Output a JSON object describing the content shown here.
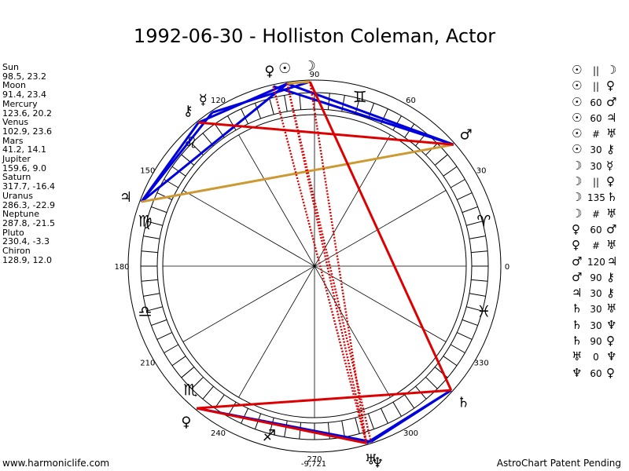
{
  "title": "1992-06-30 - Holliston Coleman, Actor",
  "planets": [
    {
      "name": "Sun",
      "coords": "98.5, 23.2",
      "lon": 98.5,
      "glyph": "☉"
    },
    {
      "name": "Moon",
      "coords": "91.4, 23.4",
      "lon": 91.4,
      "glyph": "☽"
    },
    {
      "name": "Mercury",
      "coords": "123.6, 20.2",
      "lon": 123.6,
      "glyph": "☿"
    },
    {
      "name": "Venus",
      "coords": "102.9, 23.6",
      "lon": 102.9,
      "glyph": "♀"
    },
    {
      "name": "Mars",
      "coords": "41.2, 14.1",
      "lon": 41.2,
      "glyph": "♂"
    },
    {
      "name": "Jupiter",
      "coords": "159.6, 9.0",
      "lon": 159.6,
      "glyph": "♃"
    },
    {
      "name": "Saturn",
      "coords": "317.7, -16.4",
      "lon": 317.7,
      "glyph": "♄"
    },
    {
      "name": "Uranus",
      "coords": "286.3, -22.9",
      "lon": 286.3,
      "glyph": "♅"
    },
    {
      "name": "Neptune",
      "coords": "287.8, -21.5",
      "lon": 287.8,
      "glyph": "♆"
    },
    {
      "name": "Pluto",
      "coords": "230.4, -3.3",
      "lon": 230.4,
      "glyph": "♀"
    },
    {
      "name": "Chiron",
      "coords": "128.9, 12.0",
      "lon": 128.9,
      "glyph": "⚷"
    }
  ],
  "aspects": [
    {
      "p1": "☉",
      "angle": "||",
      "p2": "☽"
    },
    {
      "p1": "☉",
      "angle": "||",
      "p2": "♀"
    },
    {
      "p1": "☉",
      "angle": "60",
      "p2": "♂"
    },
    {
      "p1": "☉",
      "angle": "60",
      "p2": "♃"
    },
    {
      "p1": "☉",
      "angle": "#",
      "p2": "♅"
    },
    {
      "p1": "☉",
      "angle": "30",
      "p2": "⚷"
    },
    {
      "p1": "☽",
      "angle": "30",
      "p2": "☿"
    },
    {
      "p1": "☽",
      "angle": "||",
      "p2": "♀"
    },
    {
      "p1": "☽",
      "angle": "135",
      "p2": "♄"
    },
    {
      "p1": "☽",
      "angle": "#",
      "p2": "♅"
    },
    {
      "p1": "♀",
      "angle": "60",
      "p2": "♂"
    },
    {
      "p1": "♀",
      "angle": "#",
      "p2": "♅"
    },
    {
      "p1": "♂",
      "angle": "120",
      "p2": "♃"
    },
    {
      "p1": "♂",
      "angle": "90",
      "p2": "⚷"
    },
    {
      "p1": "♃",
      "angle": "30",
      "p2": "⚷"
    },
    {
      "p1": "♄",
      "angle": "30",
      "p2": "♅"
    },
    {
      "p1": "♄",
      "angle": "30",
      "p2": "♆"
    },
    {
      "p1": "♄",
      "angle": "90",
      "p2": "♀"
    },
    {
      "p1": "♅",
      "angle": "0",
      "p2": "♆"
    },
    {
      "p1": "♆",
      "angle": "60",
      "p2": "♀"
    }
  ],
  "degree_labels": [
    {
      "deg": 0,
      "text": "0"
    },
    {
      "deg": 30,
      "text": "30"
    },
    {
      "deg": 60,
      "text": "60"
    },
    {
      "deg": 90,
      "text": "90"
    },
    {
      "deg": 120,
      "text": "120"
    },
    {
      "deg": 150,
      "text": "150"
    },
    {
      "deg": 180,
      "text": "180"
    },
    {
      "deg": 210,
      "text": "210"
    },
    {
      "deg": 240,
      "text": "240"
    },
    {
      "deg": 270,
      "text": "270"
    },
    {
      "deg": 300,
      "text": "300"
    },
    {
      "deg": 330,
      "text": "330"
    }
  ],
  "signs": [
    {
      "deg": 15,
      "glyph": "♈"
    },
    {
      "deg": 75,
      "glyph": "♊"
    },
    {
      "deg": 135,
      "glyph": "♌"
    },
    {
      "deg": 165,
      "glyph": "♍"
    },
    {
      "deg": 195,
      "glyph": "♎"
    },
    {
      "deg": 225,
      "glyph": "♏"
    },
    {
      "deg": 255,
      "glyph": "♐"
    },
    {
      "deg": 345,
      "glyph": "♓"
    }
  ],
  "bottom_value": "-9,721",
  "aspect_lines": [
    {
      "a": 98.5,
      "b": 41.2,
      "color": "#0000dd",
      "style": "solid"
    },
    {
      "a": 98.5,
      "b": 159.6,
      "color": "#0000dd",
      "style": "solid"
    },
    {
      "a": 102.9,
      "b": 41.2,
      "color": "#0000dd",
      "style": "solid"
    },
    {
      "a": 91.4,
      "b": 123.6,
      "color": "#0000dd",
      "style": "solid"
    },
    {
      "a": 123.6,
      "b": 159.6,
      "color": "#0000dd",
      "style": "solid"
    },
    {
      "a": 98.5,
      "b": 128.9,
      "color": "#0000dd",
      "style": "solid"
    },
    {
      "a": 159.6,
      "b": 128.9,
      "color": "#0000dd",
      "style": "solid"
    },
    {
      "a": 317.7,
      "b": 287.8,
      "color": "#0000dd",
      "style": "solid"
    },
    {
      "a": 230.4,
      "b": 287.8,
      "color": "#0000dd",
      "style": "solid"
    },
    {
      "a": 317.7,
      "b": 286.3,
      "color": "#0000dd",
      "style": "solid"
    },
    {
      "a": 91.4,
      "b": 98.5,
      "color": "#cc9933",
      "style": "solid"
    },
    {
      "a": 41.2,
      "b": 159.6,
      "color": "#cc9933",
      "style": "solid"
    },
    {
      "a": 128.9,
      "b": 41.2,
      "color": "#dd0000",
      "style": "solid"
    },
    {
      "a": 91.4,
      "b": 317.7,
      "color": "#dd0000",
      "style": "solid"
    },
    {
      "a": 230.4,
      "b": 317.7,
      "color": "#dd0000",
      "style": "solid"
    },
    {
      "a": 230.4,
      "b": 286.3,
      "color": "#dd0000",
      "style": "solid"
    },
    {
      "a": 98.5,
      "b": 286.3,
      "color": "#dd0000",
      "style": "dotted"
    },
    {
      "a": 91.4,
      "b": 286.3,
      "color": "#dd0000",
      "style": "dotted"
    },
    {
      "a": 102.9,
      "b": 286.3,
      "color": "#dd0000",
      "style": "dotted"
    },
    {
      "a": 98.5,
      "b": 287.8,
      "color": "#dd0000",
      "style": "dotted"
    }
  ],
  "footer": {
    "left": "www.harmoniclife.com",
    "right": "AstroChart Patent Pending"
  }
}
